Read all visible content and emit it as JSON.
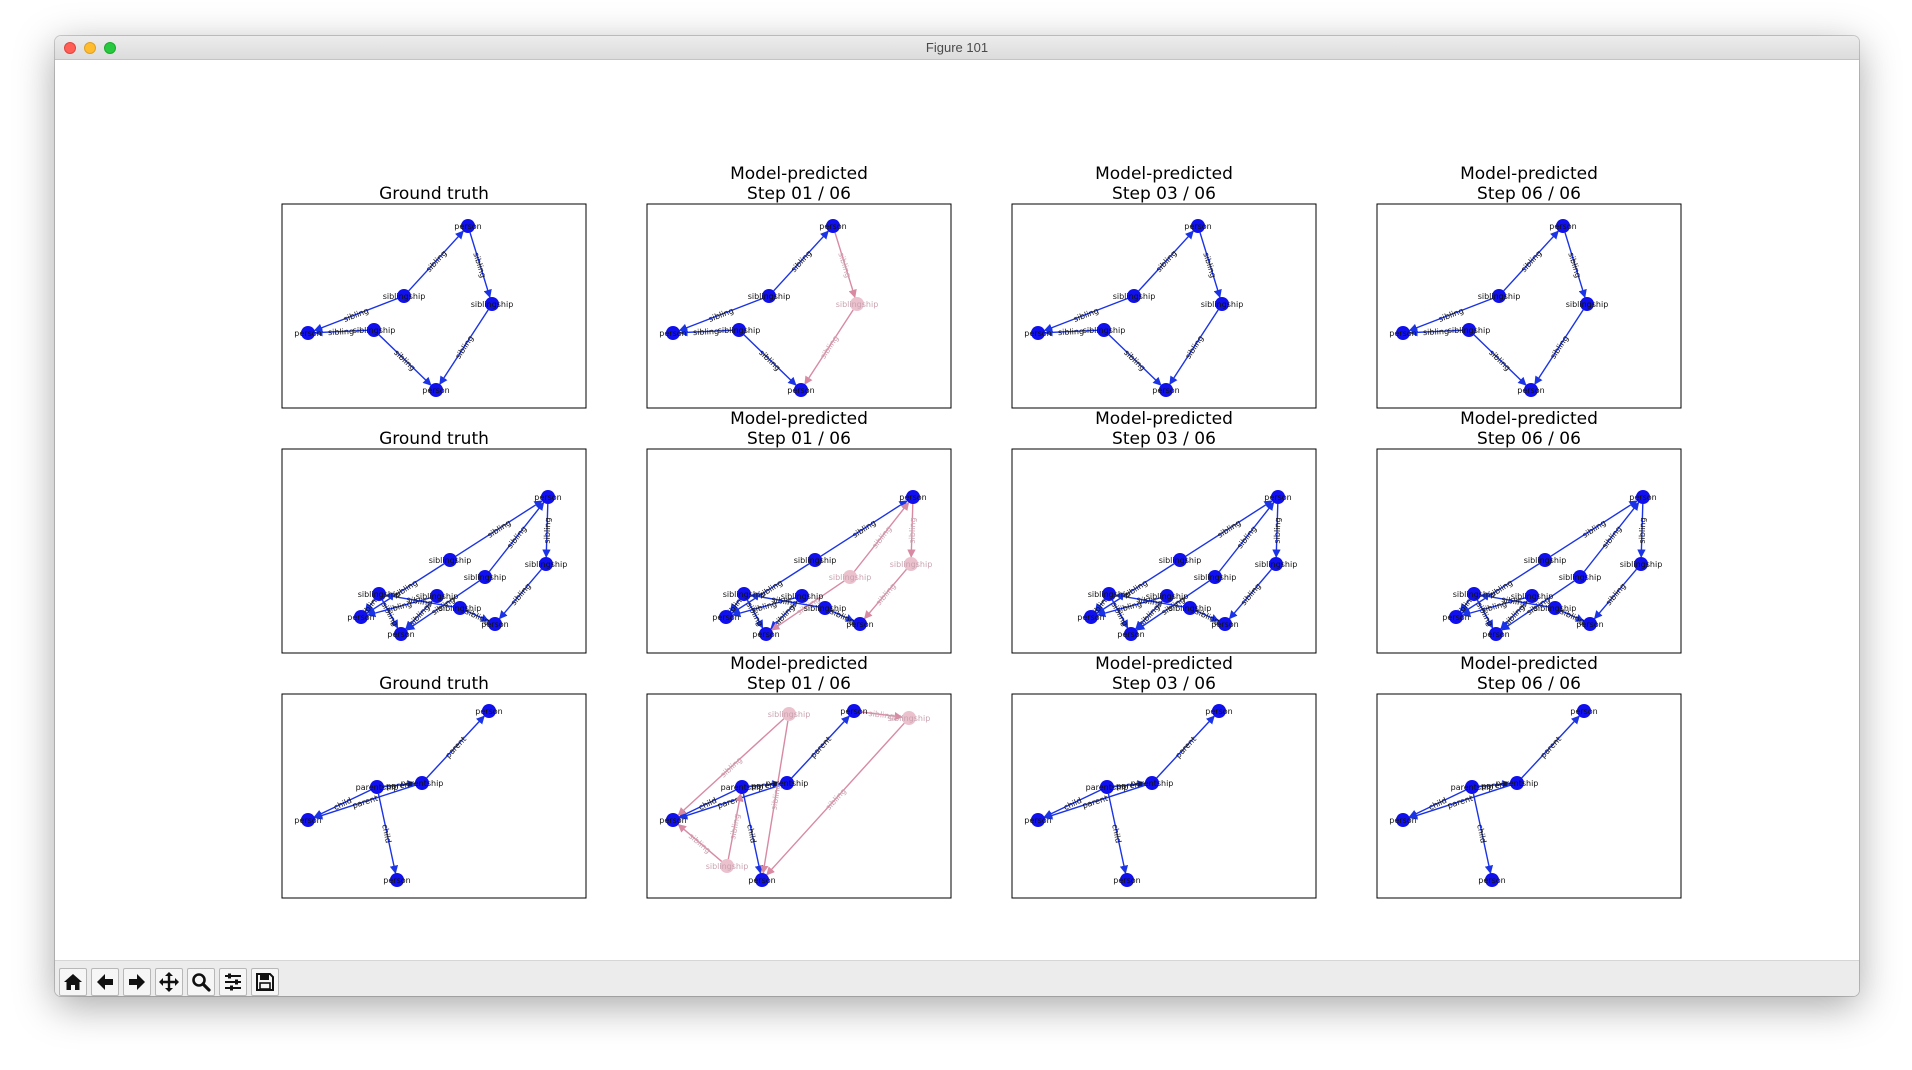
{
  "window": {
    "title": "Figure 101"
  },
  "rows": [
    {
      "panels": [
        {
          "title_line1": "",
          "title_line2": "Ground truth"
        },
        {
          "title_line1": "Model-predicted",
          "title_line2": "Step 01 / 06"
        },
        {
          "title_line1": "Model-predicted",
          "title_line2": "Step 03 / 06"
        },
        {
          "title_line1": "Model-predicted",
          "title_line2": "Step 06 / 06"
        }
      ]
    },
    {
      "panels": [
        {
          "title_line1": "",
          "title_line2": "Ground truth"
        },
        {
          "title_line1": "Model-predicted",
          "title_line2": "Step 01 / 06"
        },
        {
          "title_line1": "Model-predicted",
          "title_line2": "Step 03 / 06"
        },
        {
          "title_line1": "Model-predicted",
          "title_line2": "Step 06 / 06"
        }
      ]
    },
    {
      "panels": [
        {
          "title_line1": "",
          "title_line2": "Ground truth"
        },
        {
          "title_line1": "Model-predicted",
          "title_line2": "Step 01 / 06"
        },
        {
          "title_line1": "Model-predicted",
          "title_line2": "Step 03 / 06"
        },
        {
          "title_line1": "Model-predicted",
          "title_line2": "Step 06 / 06"
        }
      ]
    }
  ],
  "graph_labels": {
    "person": "person",
    "siblingship": "siblingship",
    "parentship": "parentship",
    "sibling": "sibling",
    "parent": "parent",
    "child": "child"
  },
  "colors": {
    "node": "#1010ee",
    "edge": "#1a33e6",
    "faded": "#e8b6c6",
    "faded_edge": "#d88aa3"
  },
  "toolbar": [
    "home-icon",
    "back-arrow-icon",
    "forward-arrow-icon",
    "pan-icon",
    "zoom-icon",
    "configure-subplots-icon",
    "save-icon"
  ]
}
